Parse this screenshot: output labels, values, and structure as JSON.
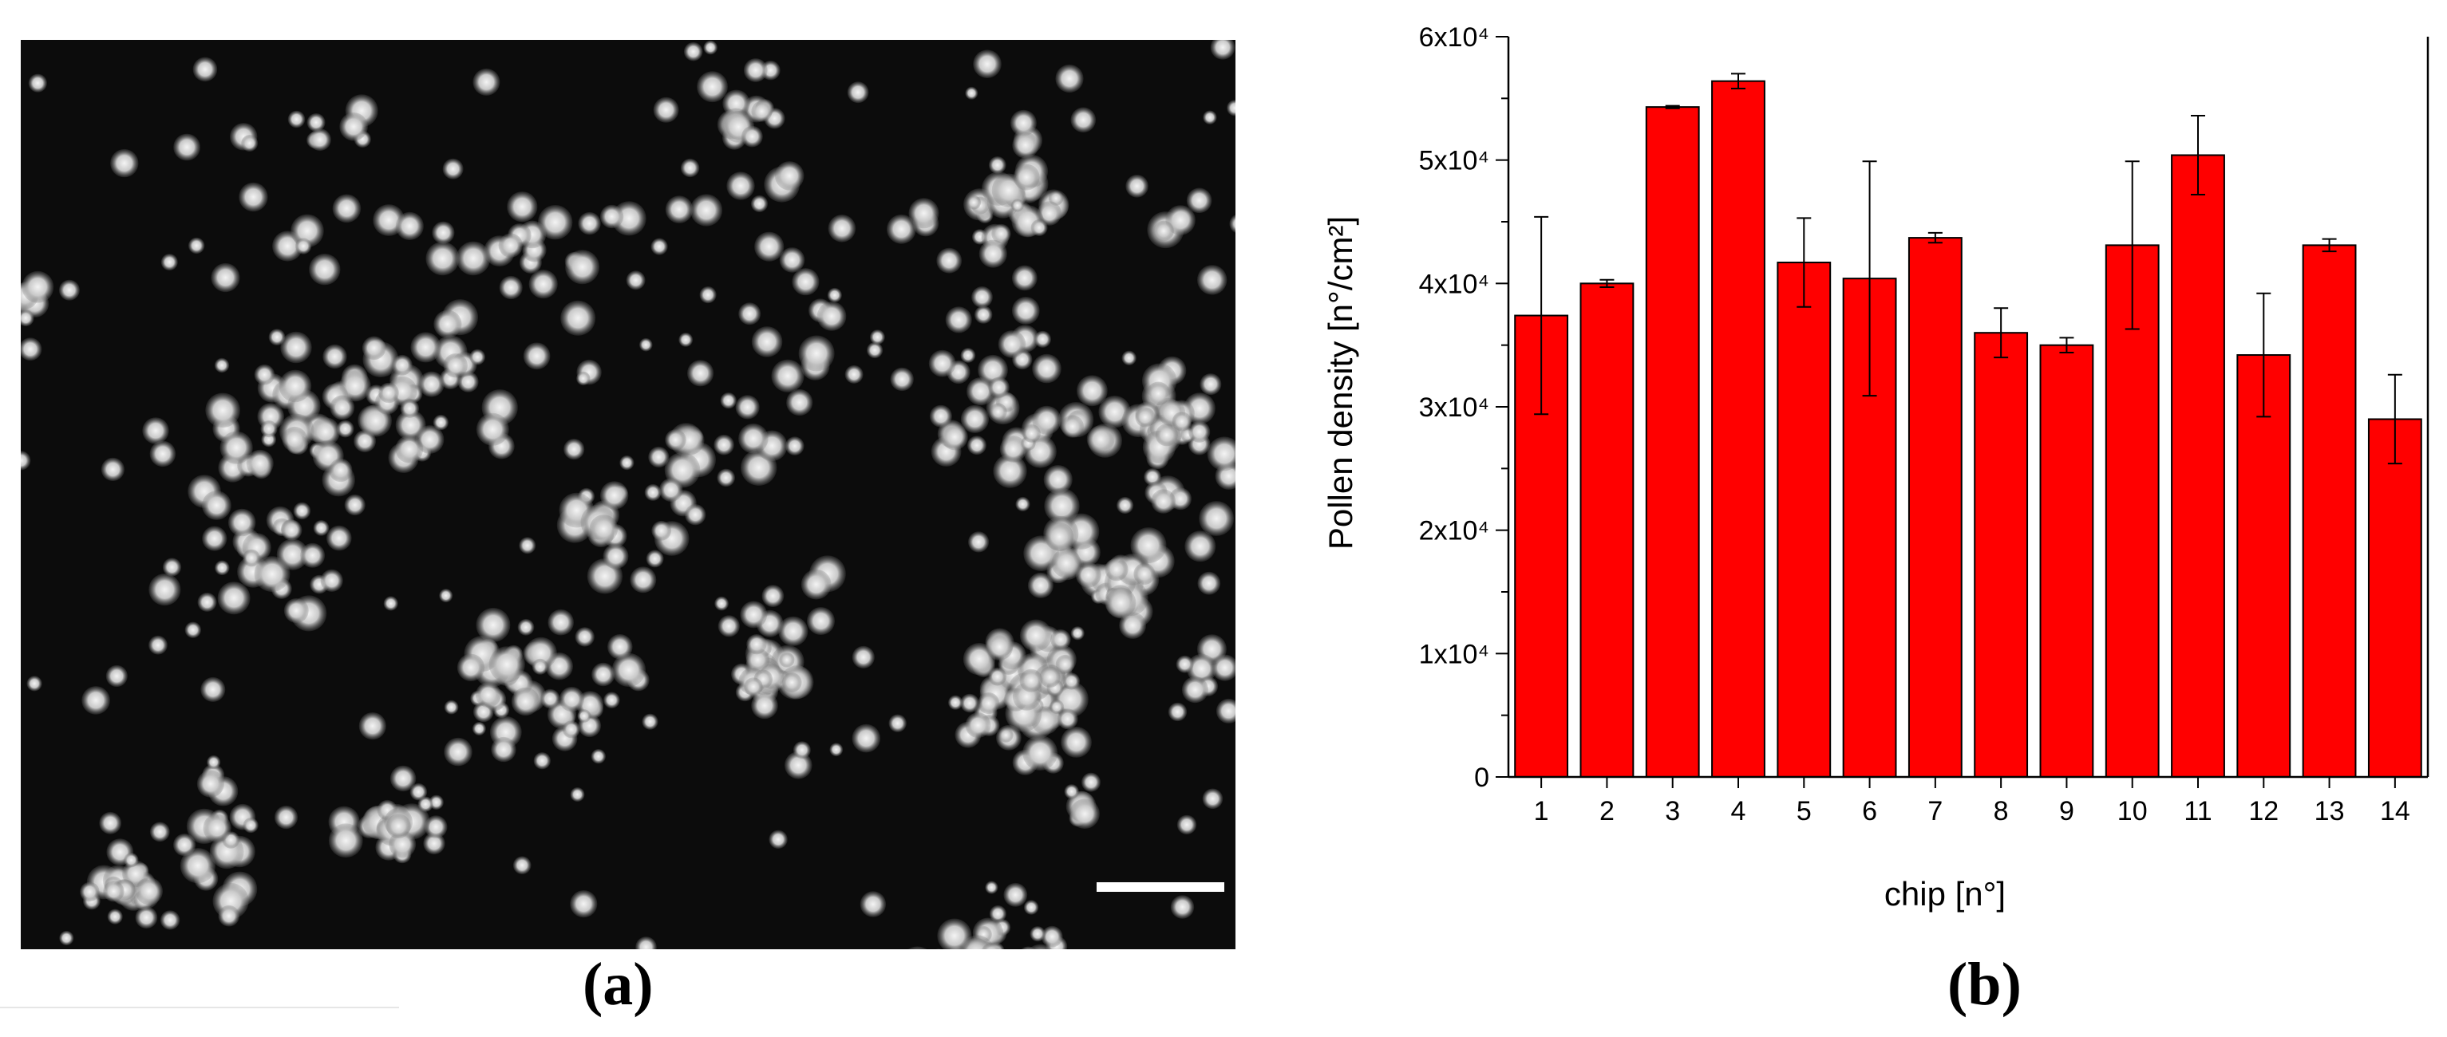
{
  "figure": {
    "panel_a_label": "(a)",
    "panel_b_label": "(b)"
  },
  "micrograph": {
    "description_icon": "scale-bar-icon"
  },
  "chart_data": {
    "type": "bar",
    "xlabel": "chip [n°]",
    "ylabel": "Pollen density [n°/cm²]",
    "ylim": [
      0,
      60000
    ],
    "yticks": [
      0,
      10000,
      20000,
      30000,
      40000,
      50000,
      60000
    ],
    "ytick_labels": [
      "0",
      "1x10⁴",
      "2x10⁴",
      "3x10⁴",
      "4x10⁴",
      "5x10⁴",
      "6x10⁴"
    ],
    "categories": [
      "1",
      "2",
      "3",
      "4",
      "5",
      "6",
      "7",
      "8",
      "9",
      "10",
      "11",
      "12",
      "13",
      "14"
    ],
    "values": [
      37400,
      40000,
      54300,
      56400,
      41700,
      40400,
      43700,
      36000,
      35000,
      43100,
      50400,
      34200,
      43100,
      29000
    ],
    "errors": [
      8000,
      300,
      100,
      600,
      3600,
      9500,
      400,
      2000,
      600,
      6800,
      3200,
      5000,
      500,
      3600
    ],
    "bar_color": "#ff0000",
    "grid": false,
    "legend": "none"
  }
}
